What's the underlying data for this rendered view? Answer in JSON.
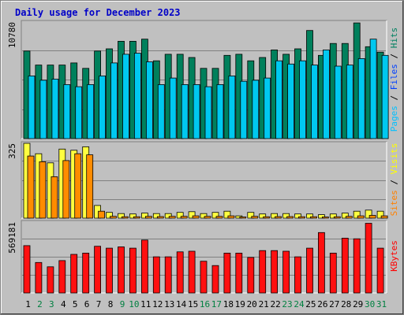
{
  "chart_data": {
    "type": "bar",
    "title": "Daily usage for December 2023",
    "x": [
      "1",
      "2",
      "3",
      "4",
      "5",
      "6",
      "7",
      "8",
      "9",
      "10",
      "11",
      "12",
      "13",
      "14",
      "15",
      "16",
      "17",
      "18",
      "19",
      "20",
      "21",
      "22",
      "23",
      "24",
      "25",
      "26",
      "27",
      "28",
      "29",
      "30",
      "31"
    ],
    "weekend_days": [
      2,
      3,
      9,
      10,
      16,
      17,
      23,
      24,
      30,
      31
    ],
    "panels": [
      {
        "id": "hits",
        "max_label": "10780",
        "ymax": 10780,
        "legend": [
          {
            "text": "Pages",
            "color": "#00c0ff"
          },
          {
            "text": " / ",
            "color": "#000000"
          },
          {
            "text": "Files",
            "color": "#0040ff"
          },
          {
            "text": " / ",
            "color": "#000000"
          },
          {
            "text": "Hits",
            "color": "#008060"
          }
        ],
        "series": [
          {
            "name": "Hits",
            "color": "#00805c",
            "offset": 0,
            "values": [
              8100,
              6800,
              6800,
              6800,
              7000,
              6500,
              8100,
              8300,
              9000,
              9000,
              9200,
              7200,
              7800,
              7800,
              7500,
              6500,
              6500,
              7700,
              7800,
              7200,
              7500,
              8200,
              7800,
              8300,
              10000,
              7700,
              8800,
              8800,
              10700,
              8500,
              8000
            ]
          },
          {
            "name": "Files",
            "color": "#00c8f0",
            "offset": 6,
            "values": [
              5800,
              5400,
              5500,
              5000,
              4800,
              5000,
              5800,
              7000,
              7800,
              7900,
              7100,
              5000,
              5600,
              5000,
              5000,
              4800,
              5000,
              5800,
              5300,
              5400,
              5600,
              7200,
              6900,
              7200,
              6800,
              8200,
              6700,
              6800,
              7400,
              9200,
              7700
            ]
          }
        ]
      },
      {
        "id": "visits",
        "max_label": "325",
        "ymax": 325,
        "legend": [
          {
            "text": "Sites",
            "color": "#ff8000"
          },
          {
            "text": " / ",
            "color": "#000000"
          },
          {
            "text": "Visits",
            "color": "#ffff00"
          }
        ],
        "series": [
          {
            "name": "Visits",
            "color": "#ffff40",
            "offset": 0,
            "values": [
              325,
              280,
              240,
              300,
              295,
              310,
              55,
              25,
              20,
              18,
              22,
              20,
              20,
              25,
              28,
              20,
              25,
              30,
              10,
              25,
              18,
              20,
              20,
              18,
              18,
              15,
              18,
              22,
              30,
              35,
              30
            ]
          },
          {
            "name": "Sites",
            "color": "#ff8c00",
            "offset": 5,
            "values": [
              270,
              245,
              180,
              250,
              280,
              275,
              30,
              8,
              6,
              6,
              8,
              7,
              8,
              8,
              10,
              8,
              8,
              10,
              5,
              8,
              6,
              7,
              7,
              6,
              6,
              5,
              6,
              8,
              10,
              12,
              10
            ]
          }
        ]
      },
      {
        "id": "kbytes",
        "max_label": "569181",
        "ymax": 569181,
        "legend": [
          {
            "text": "KBytes",
            "color": "#ff0000"
          }
        ],
        "series": [
          {
            "name": "KBytes",
            "color": "#ff1010",
            "offset": 0,
            "values": [
              380000,
              245000,
              210000,
              260000,
              310000,
              320000,
              375000,
              360000,
              370000,
              360000,
              425000,
              290000,
              290000,
              330000,
              335000,
              255000,
              220000,
              320000,
              320000,
              285000,
              340000,
              340000,
              335000,
              290000,
              360000,
              485000,
              320000,
              440000,
              435000,
              560000,
              360000
            ]
          }
        ]
      }
    ]
  }
}
